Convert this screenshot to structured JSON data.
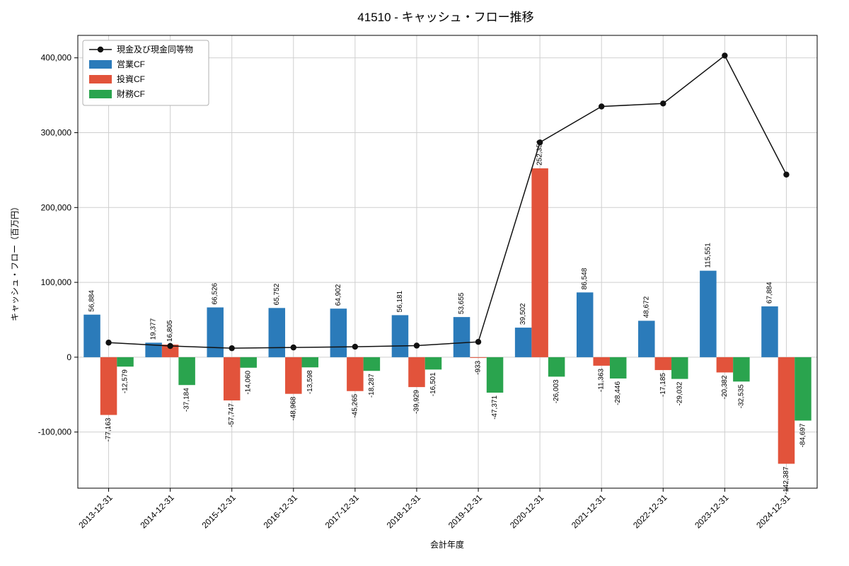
{
  "chart_data": {
    "type": "bar",
    "title": "41510 - キャッシュ・フロー推移",
    "xlabel": "会計年度",
    "ylabel": "キャッシュ・フロー（百万円）",
    "categories": [
      "2013-12-31",
      "2014-12-31",
      "2015-12-31",
      "2016-12-31",
      "2017-12-31",
      "2018-12-31",
      "2019-12-31",
      "2020-12-31",
      "2021-12-31",
      "2022-12-31",
      "2023-12-31",
      "2024-12-31"
    ],
    "series": [
      {
        "name": "現金及び現金同等物",
        "type": "line",
        "color": "#111111",
        "values": [
          19500,
          15000,
          12000,
          13000,
          14000,
          15500,
          20500,
          287000,
          335000,
          339000,
          403000,
          244000
        ]
      },
      {
        "name": "営業CF",
        "type": "bar",
        "color": "#2b7bba",
        "values": [
          56884,
          19377,
          66526,
          65752,
          64902,
          56181,
          53655,
          39502,
          86548,
          48672,
          115551,
          67884
        ]
      },
      {
        "name": "投資CF",
        "type": "bar",
        "color": "#e2533b",
        "values": [
          -77163,
          16805,
          -57747,
          -48968,
          -45265,
          -39929,
          -933,
          252359,
          -11363,
          -17185,
          -20382,
          -142387
        ]
      },
      {
        "name": "財務CF",
        "type": "bar",
        "color": "#2aa44e",
        "values": [
          -12579,
          -37184,
          -14060,
          -13598,
          -18287,
          -16501,
          -47371,
          -26003,
          -28446,
          -29032,
          -32535,
          -84697
        ]
      }
    ],
    "yticks": [
      -100000,
      0,
      100000,
      200000,
      300000,
      400000
    ],
    "ylim": [
      -175000,
      430000
    ],
    "grid": true,
    "legend_position": "upper left",
    "value_labels": true,
    "colors": {
      "grid": "#cfcfcf",
      "axis": "#000000",
      "background": "#ffffff"
    }
  }
}
